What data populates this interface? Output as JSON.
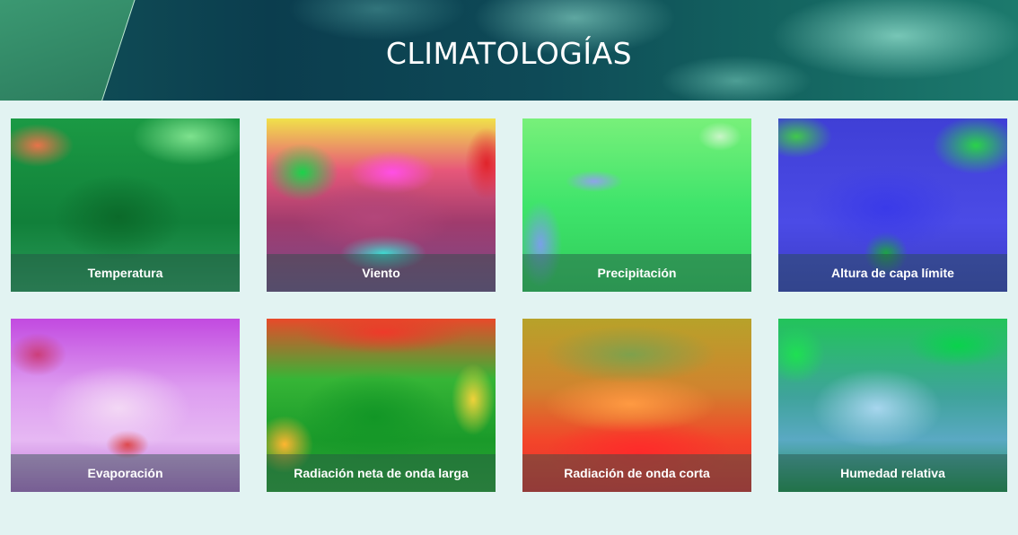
{
  "header": {
    "title": "CLIMATOLOGÍAS"
  },
  "cards": [
    {
      "label": "Temperatura"
    },
    {
      "label": "Viento"
    },
    {
      "label": "Precipitación"
    },
    {
      "label": "Altura de capa límite"
    },
    {
      "label": "Evaporación"
    },
    {
      "label": "Radiación neta de onda larga"
    },
    {
      "label": "Radiación de onda corta"
    },
    {
      "label": "Humedad relativa"
    }
  ],
  "colors": {
    "page_background": "#e2f3f2",
    "caption_text": "#ffffff",
    "title_text": "#ffffff"
  }
}
